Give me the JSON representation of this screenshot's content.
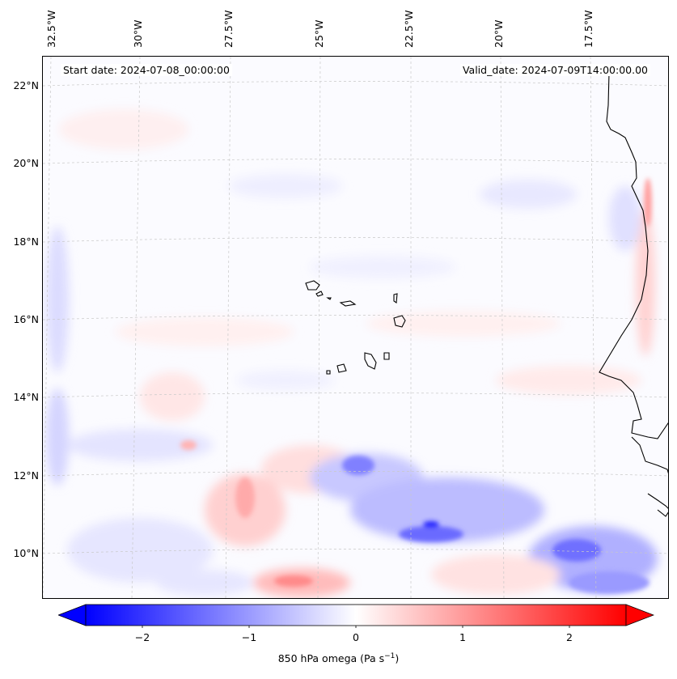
{
  "header": {
    "start_date": "Start date: 2024-07-08_00:00:00",
    "valid_date": "Valid_date: 2024-07-09T14:00:00.00"
  },
  "longitude_labels": [
    "32.5°W",
    "30°W",
    "27.5°W",
    "25°W",
    "22.5°W",
    "20°W",
    "17.5°W"
  ],
  "latitude_labels": [
    "22°N",
    "20°N",
    "18°N",
    "16°N",
    "14°N",
    "12°N",
    "10°N"
  ],
  "colorbar": {
    "ticks": [
      "−2",
      "−1",
      "0",
      "1",
      "2"
    ],
    "label_prefix": "850 hPa omega (Pa s",
    "label_exp": "−1",
    "label_suffix": ")",
    "range": [
      -2.6,
      2.6
    ],
    "colormap": "bwr",
    "extend": "both"
  },
  "colors": {
    "negative": "#0000ff",
    "zero": "#ffffff",
    "positive": "#ff0000",
    "coastline": "#000000",
    "grid": "#c8c8c8"
  }
}
